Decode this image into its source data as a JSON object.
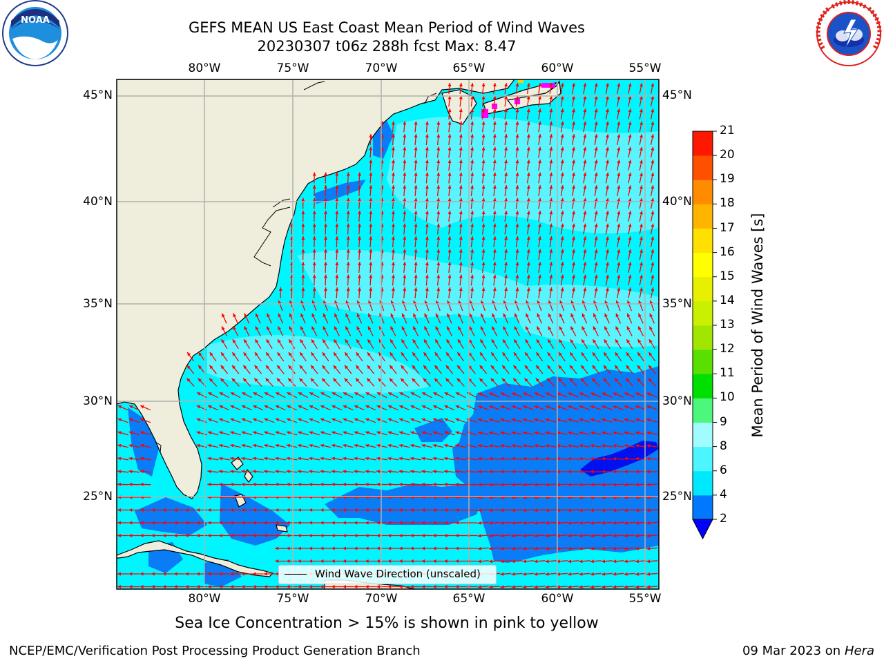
{
  "header": {
    "title_line1": "GEFS MEAN US East Coast Mean Period of Wind Waves",
    "title_line2": "20230307 t06z 288h fcst   Max: 8.47"
  },
  "logos": {
    "left": "NOAA",
    "right": "National Weather Service"
  },
  "map": {
    "lon_labels": [
      "80°W",
      "75°W",
      "70°W",
      "65°W",
      "60°W",
      "55°W"
    ],
    "lat_labels": [
      "45°N",
      "40°N",
      "35°N",
      "30°N",
      "25°N"
    ],
    "legend_label": "Wind Wave Direction (unscaled)",
    "land_color": "#efeddb",
    "arrow_color": "#ff0000",
    "grid_color": "#b0b0b0"
  },
  "colorbar": {
    "label": "Mean Period of Wind Waves [s]",
    "ticks": [
      "2",
      "4",
      "6",
      "8",
      "9",
      "10",
      "11",
      "12",
      "13",
      "14",
      "15",
      "16",
      "17",
      "18",
      "19",
      "20",
      "21"
    ],
    "colors": [
      "#0078ff",
      "#00e8ff",
      "#4cf5ff",
      "#a0fcff",
      "#4cf77c",
      "#00e000",
      "#5ae000",
      "#a0e600",
      "#c8f000",
      "#e6f000",
      "#ffff00",
      "#ffe000",
      "#ffb400",
      "#ff8c00",
      "#ff5000",
      "#ff1800",
      "#ff0000"
    ],
    "under_color": "#0000ff"
  },
  "footer": {
    "note": "Sea Ice Concentration > 15% is shown in pink to yellow",
    "left": "NCEP/EMC/Verification Post Processing Product Generation Branch",
    "right_date": "09 Mar 2023 on",
    "right_host": "Hera"
  }
}
